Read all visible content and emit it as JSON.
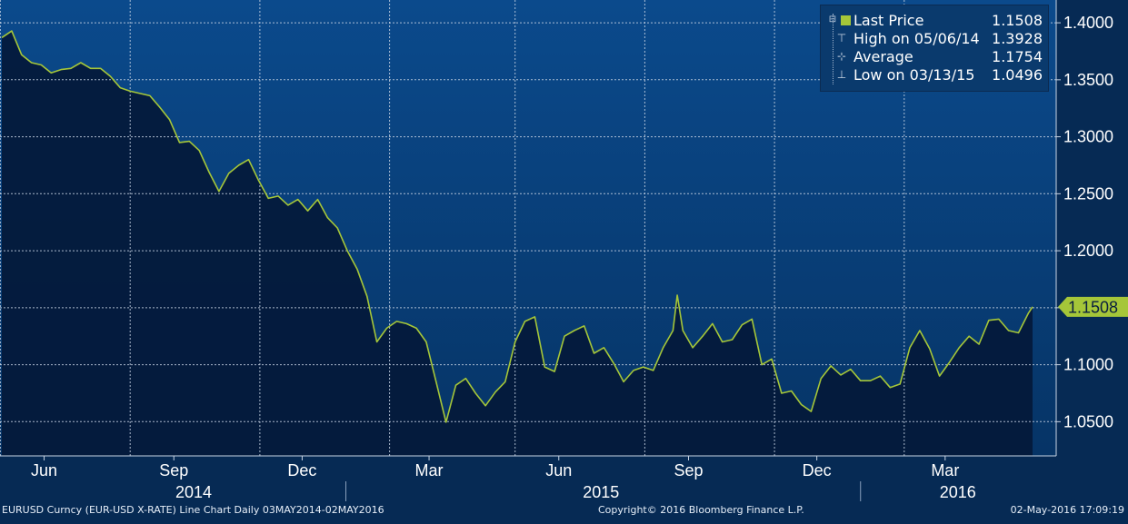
{
  "chart_data": {
    "type": "area",
    "title": "",
    "x": [
      "2014-05-02",
      "2014-05-09",
      "2014-05-16",
      "2014-05-23",
      "2014-05-30",
      "2014-06-06",
      "2014-06-13",
      "2014-06-20",
      "2014-06-27",
      "2014-07-04",
      "2014-07-11",
      "2014-07-18",
      "2014-07-25",
      "2014-08-01",
      "2014-08-08",
      "2014-08-15",
      "2014-08-22",
      "2014-08-29",
      "2014-09-05",
      "2014-09-12",
      "2014-09-19",
      "2014-09-26",
      "2014-10-03",
      "2014-10-10",
      "2014-10-17",
      "2014-10-24",
      "2014-10-31",
      "2014-11-07",
      "2014-11-14",
      "2014-11-21",
      "2014-11-28",
      "2014-12-05",
      "2014-12-12",
      "2014-12-19",
      "2014-12-26",
      "2015-01-02",
      "2015-01-09",
      "2015-01-16",
      "2015-01-23",
      "2015-01-30",
      "2015-02-06",
      "2015-02-13",
      "2015-02-20",
      "2015-02-27",
      "2015-03-06",
      "2015-03-13",
      "2015-03-20",
      "2015-03-27",
      "2015-04-03",
      "2015-04-10",
      "2015-04-17",
      "2015-04-24",
      "2015-05-01",
      "2015-05-08",
      "2015-05-15",
      "2015-05-22",
      "2015-05-29",
      "2015-06-05",
      "2015-06-12",
      "2015-06-19",
      "2015-06-26",
      "2015-07-03",
      "2015-07-10",
      "2015-07-17",
      "2015-07-24",
      "2015-07-31",
      "2015-08-07",
      "2015-08-14",
      "2015-08-21",
      "2015-08-24",
      "2015-08-28",
      "2015-09-04",
      "2015-09-11",
      "2015-09-18",
      "2015-09-25",
      "2015-10-02",
      "2015-10-09",
      "2015-10-16",
      "2015-10-23",
      "2015-10-30",
      "2015-11-06",
      "2015-11-13",
      "2015-11-20",
      "2015-11-27",
      "2015-12-04",
      "2015-12-11",
      "2015-12-18",
      "2015-12-25",
      "2016-01-01",
      "2016-01-08",
      "2016-01-15",
      "2016-01-22",
      "2016-01-29",
      "2016-02-05",
      "2016-02-12",
      "2016-02-19",
      "2016-02-26",
      "2016-03-04",
      "2016-03-11",
      "2016-03-18",
      "2016-03-25",
      "2016-04-01",
      "2016-04-08",
      "2016-04-15",
      "2016-04-22",
      "2016-04-29",
      "2016-05-02"
    ],
    "series": [
      {
        "name": "Last Price",
        "values": [
          1.387,
          1.3928,
          1.372,
          1.365,
          1.363,
          1.356,
          1.359,
          1.36,
          1.365,
          1.36,
          1.36,
          1.353,
          1.343,
          1.34,
          1.338,
          1.336,
          1.326,
          1.315,
          1.295,
          1.296,
          1.288,
          1.269,
          1.252,
          1.268,
          1.275,
          1.28,
          1.262,
          1.246,
          1.248,
          1.24,
          1.245,
          1.235,
          1.245,
          1.229,
          1.22,
          1.2,
          1.184,
          1.16,
          1.12,
          1.132,
          1.138,
          1.136,
          1.132,
          1.12,
          1.085,
          1.0496,
          1.082,
          1.088,
          1.075,
          1.064,
          1.076,
          1.085,
          1.12,
          1.138,
          1.142,
          1.098,
          1.094,
          1.125,
          1.13,
          1.134,
          1.11,
          1.115,
          1.101,
          1.085,
          1.095,
          1.098,
          1.095,
          1.115,
          1.13,
          1.161,
          1.13,
          1.115,
          1.125,
          1.136,
          1.12,
          1.122,
          1.135,
          1.14,
          1.1,
          1.105,
          1.075,
          1.077,
          1.065,
          1.059,
          1.088,
          1.099,
          1.091,
          1.096,
          1.086,
          1.086,
          1.09,
          1.08,
          1.083,
          1.115,
          1.13,
          1.114,
          1.09,
          1.102,
          1.115,
          1.125,
          1.118,
          1.139,
          1.14,
          1.13,
          1.128,
          1.145,
          1.1508
        ]
      }
    ],
    "ylim": [
      1.02,
      1.42
    ],
    "y_ticks": [
      1.05,
      1.1,
      1.15,
      1.2,
      1.25,
      1.3,
      1.35,
      1.4
    ],
    "y_tick_labels": [
      "1.0500",
      "1.1000",
      "",
      "1.2000",
      "1.2500",
      "1.3000",
      "1.3500",
      "1.4000"
    ],
    "x_tick_labels": [
      {
        "label": "Jun",
        "date": "2014-06-01"
      },
      {
        "label": "Sep",
        "date": "2014-09-01"
      },
      {
        "label": "Dec",
        "date": "2014-12-01"
      },
      {
        "label": "Mar",
        "date": "2015-03-01"
      },
      {
        "label": "Jun",
        "date": "2015-06-01"
      },
      {
        "label": "Sep",
        "date": "2015-09-01"
      },
      {
        "label": "Dec",
        "date": "2015-12-01"
      },
      {
        "label": "Mar",
        "date": "2016-03-01"
      }
    ],
    "year_labels": [
      {
        "label": "2014",
        "date": "2014-09-15"
      },
      {
        "label": "2015",
        "date": "2015-07-01"
      },
      {
        "label": "2016",
        "date": "2016-03-10"
      }
    ],
    "year_dividers": [
      "2015-01-01",
      "2016-01-01"
    ],
    "x_grid_dates": [
      "2014-05-01",
      "2014-08-01",
      "2014-11-01",
      "2015-02-01",
      "2015-05-01",
      "2015-08-01",
      "2015-11-01",
      "2016-02-01"
    ],
    "last_price_marker": "1.1508",
    "legend": [
      {
        "icon": "square-icon",
        "label": "Last Price",
        "value": "1.1508"
      },
      {
        "icon": "high-marker-icon",
        "label": "High on 05/06/14",
        "value": "1.3928"
      },
      {
        "icon": "average-marker-icon",
        "label": "Average",
        "value": "1.1754"
      },
      {
        "icon": "low-marker-icon",
        "label": "Low on 03/13/15",
        "value": "1.0496"
      }
    ],
    "grid": true,
    "legend_position": "top-right",
    "colors": {
      "background_top": "#0b4a8c",
      "background_bottom": "#072e5c",
      "area_fill": "#04193a",
      "line": "#a5c639",
      "grid": "#c8d4e4",
      "axis_text": "#ffffff"
    }
  },
  "footer": {
    "left": "EURUSD Curncy (EUR-USD X-RATE) Line Chart  Daily 03MAY2014-02MAY2016",
    "center": "Copyright© 2016 Bloomberg Finance L.P.",
    "right": "02-May-2016 17:09:19"
  }
}
